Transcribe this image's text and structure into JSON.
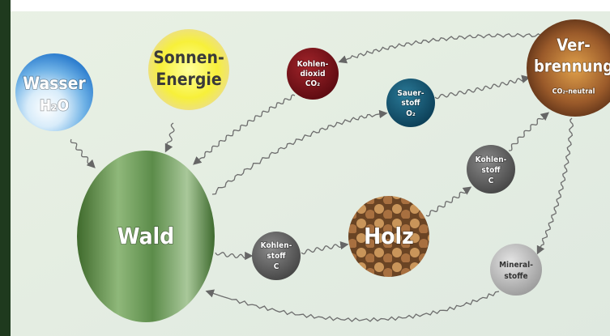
{
  "nodes": [
    {
      "lines": [
        "Wasser",
        "H₂O"
      ]
    },
    {
      "lines": [
        "Sonnen-",
        "Energie"
      ]
    },
    {
      "lines": [
        "Kohlen-",
        "dioxid",
        "CO₂"
      ]
    },
    {
      "lines": [
        "Sauer-",
        "stoff",
        "O₂"
      ]
    },
    {
      "lines": [
        "Ver-",
        "brennung",
        "CO₂-neutral"
      ]
    },
    {
      "lines": [
        "Wald"
      ]
    },
    {
      "lines": [
        "Kohlen-",
        "stoff",
        "C"
      ]
    },
    {
      "lines": [
        "Holz"
      ]
    },
    {
      "lines": [
        "Kohlen-",
        "stoff",
        "C"
      ]
    },
    {
      "lines": [
        "Mineral-",
        "stoffe"
      ]
    }
  ]
}
